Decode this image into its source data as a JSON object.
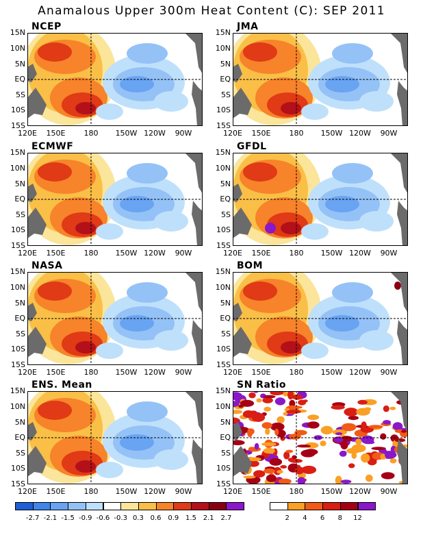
{
  "title": "Anamalous Upper 300m Heat Content (C): SEP 2011",
  "lat_labels": [
    "15N",
    "10N",
    "5N",
    "EQ",
    "5S",
    "10S",
    "15S"
  ],
  "lon_labels": [
    "120E",
    "150E",
    "180",
    "150W",
    "120W",
    "90W"
  ],
  "panels": [
    {
      "name": "NCEP"
    },
    {
      "name": "JMA"
    },
    {
      "name": "ECMWF"
    },
    {
      "name": "GFDL"
    },
    {
      "name": "NASA"
    },
    {
      "name": "BOM"
    },
    {
      "name": "ENS. Mean"
    },
    {
      "name": "SN Ratio"
    }
  ],
  "colorbar_anom": {
    "colors": [
      "#1f5fd6",
      "#3f85ea",
      "#68a4f2",
      "#94c2f7",
      "#bfe0fb",
      "#ffffff",
      "#fbe59a",
      "#f9bf47",
      "#f7832a",
      "#e03a16",
      "#b3101a",
      "#8a0012",
      "#8a18c8"
    ],
    "labels": [
      "-2.7",
      "-2.1",
      "-1.5",
      "-0.9",
      "-0.6",
      "-0.3",
      "0.3",
      "0.6",
      "0.9",
      "1.5",
      "2.1",
      "2.7"
    ]
  },
  "colorbar_sn": {
    "colors": [
      "#ffffff",
      "#f9a025",
      "#f25a17",
      "#d91e14",
      "#a50015",
      "#8a18c8"
    ],
    "labels": [
      "2",
      "4",
      "6",
      "8",
      "12"
    ]
  }
}
